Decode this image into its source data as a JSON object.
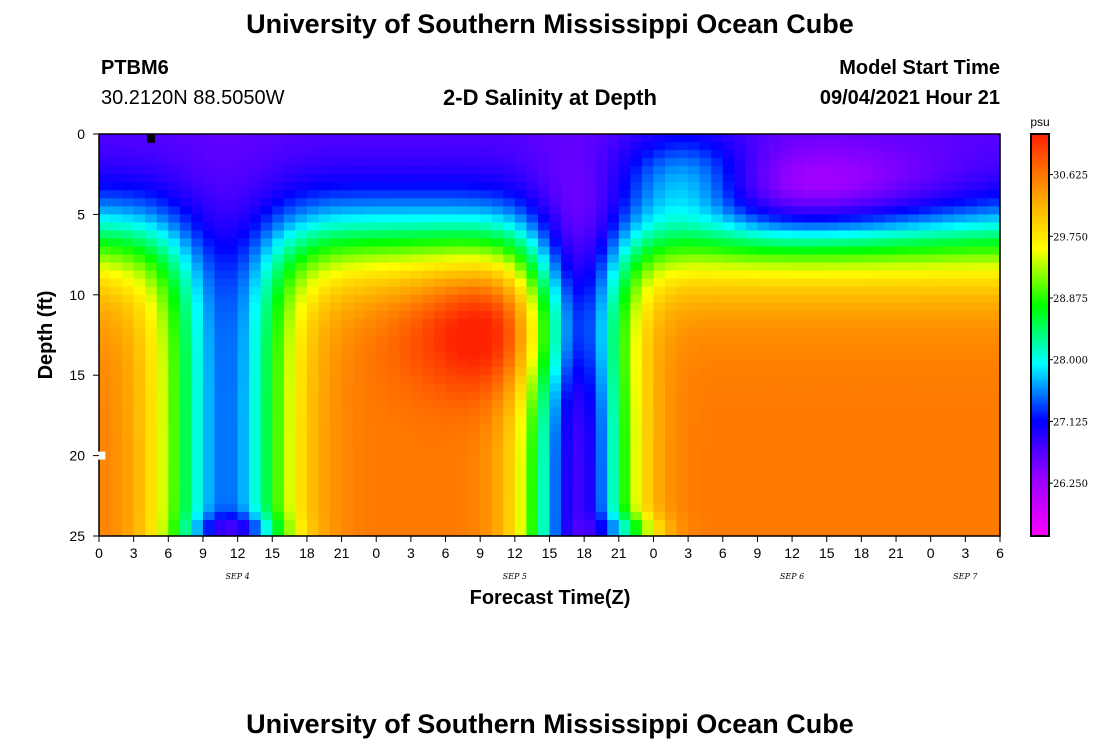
{
  "header": {
    "title": "University of Southern Mississippi Ocean Cube",
    "station_id": "PTBM6",
    "coordinates": "30.2120N  88.5050W",
    "chart_title": "2-D Salinity at Depth",
    "model_start_label": "Model Start Time",
    "model_start_value": "09/04/2021 Hour 21"
  },
  "footer": {
    "title": "University of Southern Mississippi Ocean Cube"
  },
  "chart_data": {
    "type": "heatmap",
    "title": "2-D Salinity at Depth",
    "xlabel": "Forecast Time(Z)",
    "ylabel": "Depth (ft)",
    "y_range": [
      0,
      25
    ],
    "y_ticks": [
      0,
      5,
      10,
      15,
      20,
      25
    ],
    "x_range_hours": [
      0,
      78
    ],
    "x_tick_labels": [
      "0",
      "3",
      "6",
      "9",
      "12",
      "15",
      "18",
      "21",
      "0",
      "3",
      "6",
      "9",
      "12",
      "15",
      "18",
      "21",
      "0",
      "3",
      "6",
      "9",
      "12",
      "15",
      "18",
      "21",
      "0",
      "3",
      "6"
    ],
    "day_labels": [
      {
        "label": "SEP 4",
        "at_hour": 12
      },
      {
        "label": "SEP 5",
        "at_hour": 36
      },
      {
        "label": "SEP 6",
        "at_hour": 60
      },
      {
        "label": "SEP 7",
        "at_hour": 75
      }
    ],
    "colorbar": {
      "unit": "psu",
      "min": 25.5,
      "max": 31.2,
      "tick_values": [
        26.25,
        27.125,
        28.0,
        28.875,
        29.75,
        30.625
      ],
      "tick_labels": [
        "26.250",
        "27.125",
        "28.000",
        "28.875",
        "29.750",
        "30.625"
      ],
      "colors": [
        "#ff00ff",
        "#9900ff",
        "#0000ff",
        "#00ffff",
        "#00ff00",
        "#ffff00",
        "#ff9900",
        "#ff2200"
      ]
    },
    "markers": [
      {
        "hour": 4.5,
        "depth": 0.3,
        "color": "#000000"
      },
      {
        "hour": 0.2,
        "depth": 20.0,
        "color": "#ffffff"
      }
    ]
  }
}
